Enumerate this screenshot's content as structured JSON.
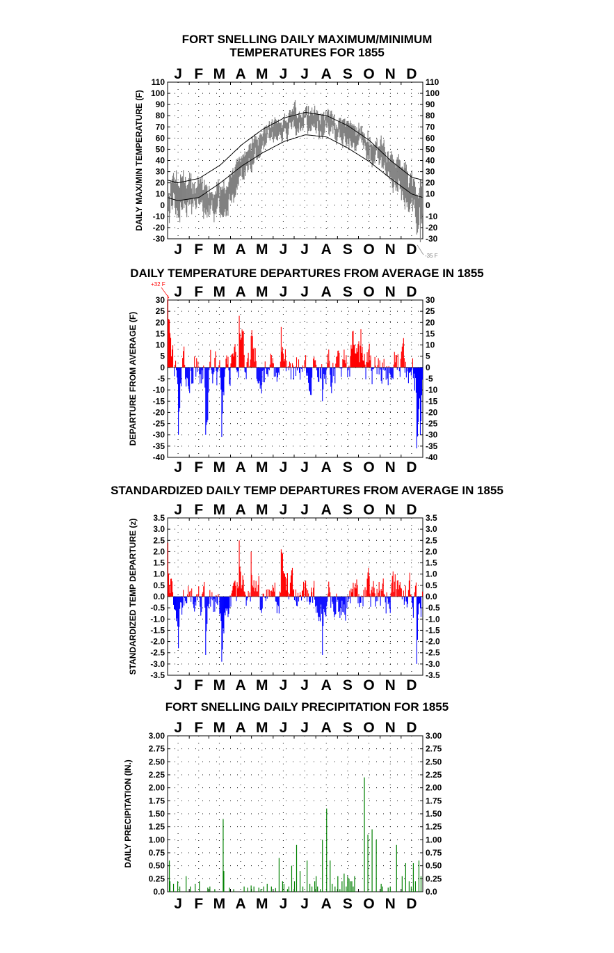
{
  "page": {
    "titles": [
      "FORT SNELLING DAILY MAXIMUM/MINIMUM",
      "TEMPERATURES FOR 1855",
      "DAILY TEMPERATURE DEPARTURES FROM AVERAGE IN 1855",
      "STANDARDIZED DAILY TEMP DEPARTURES FROM AVERAGE IN 1855",
      "FORT SNELLING DAILY PRECIPITATION FOR 1855"
    ]
  },
  "months": [
    "J",
    "F",
    "M",
    "A",
    "M",
    "J",
    "J",
    "A",
    "S",
    "O",
    "N",
    "D"
  ],
  "colors": {
    "series_daily": "#808080",
    "normals": "#000000",
    "above": "#ff0000",
    "below": "#0000ff",
    "precip": "#008000",
    "grid": "#000000",
    "note": "#ff0000"
  },
  "chart_data": [
    {
      "type": "line",
      "title": "FORT SNELLING DAILY MAXIMUM/MINIMUM TEMPERATURES FOR 1855",
      "ylabel": "DAILY MAX/MIN TEMPERATURE (F)",
      "xlabel": "",
      "x_ticks": [
        "J",
        "F",
        "M",
        "A",
        "M",
        "J",
        "J",
        "A",
        "S",
        "O",
        "N",
        "D"
      ],
      "ylim": [
        -30,
        110
      ],
      "yticks": [
        -30,
        -20,
        -10,
        0,
        10,
        20,
        30,
        40,
        50,
        60,
        70,
        80,
        90,
        100,
        110
      ],
      "grid": "dotted",
      "annotations": [
        {
          "text": "-35 F"
        }
      ],
      "series": [
        {
          "name": "",
          "kind": "daily max/min band",
          "monthly_high_approx": [
            38,
            30,
            30,
            60,
            80,
            85,
            92,
            88,
            82,
            70,
            58,
            35
          ],
          "monthly_low_approx": [
            -20,
            -15,
            -20,
            15,
            40,
            55,
            62,
            58,
            48,
            35,
            15,
            -30
          ]
        },
        {
          "name": "",
          "kind": "normal max",
          "monthly_values": [
            20,
            24,
            36,
            54,
            68,
            78,
            83,
            80,
            71,
            58,
            40,
            25
          ]
        },
        {
          "name": "",
          "kind": "normal min",
          "monthly_values": [
            4,
            7,
            20,
            35,
            47,
            57,
            63,
            61,
            51,
            39,
            24,
            10
          ]
        }
      ]
    },
    {
      "type": "bar",
      "title": "DAILY TEMPERATURE DEPARTURES FROM AVERAGE IN 1855",
      "ylabel": "DEPARTURE FROM AVERAGE (F)",
      "xlabel": "",
      "x_ticks": [
        "J",
        "F",
        "M",
        "A",
        "M",
        "J",
        "J",
        "A",
        "S",
        "O",
        "N",
        "D"
      ],
      "ylim": [
        -40,
        30
      ],
      "yticks": [
        -40,
        -35,
        -30,
        -25,
        -20,
        -15,
        -10,
        -5,
        0,
        5,
        10,
        15,
        20,
        25,
        30
      ],
      "grid": "dotted",
      "annotations": [
        {
          "text": "+32 F"
        }
      ],
      "series": [
        {
          "name": "",
          "note": "daily departure; above-average days drawn red, below-average blue",
          "sample_values": [
            {
              "day": 1,
              "value": 32
            },
            {
              "day": 16,
              "value": -30
            },
            {
              "day": 55,
              "value": -30
            },
            {
              "day": 78,
              "value": -31
            },
            {
              "day": 103,
              "value": 23
            },
            {
              "day": 108,
              "value": 16
            },
            {
              "day": 120,
              "value": 14
            },
            {
              "day": 163,
              "value": 18
            },
            {
              "day": 222,
              "value": -15
            },
            {
              "day": 265,
              "value": 16
            },
            {
              "day": 277,
              "value": 17
            },
            {
              "day": 357,
              "value": -36
            },
            {
              "day": 362,
              "value": -30
            }
          ]
        }
      ]
    },
    {
      "type": "bar",
      "title": "STANDARDIZED DAILY TEMP DEPARTURES FROM AVERAGE IN 1855",
      "ylabel": "STANDARDIZED TEMP DEPARTURE (z)",
      "xlabel": "",
      "x_ticks": [
        "J",
        "F",
        "M",
        "A",
        "M",
        "J",
        "J",
        "A",
        "S",
        "O",
        "N",
        "D"
      ],
      "ylim": [
        -3.5,
        3.5
      ],
      "yticks": [
        "-3.5",
        "-3.0",
        "-2.5",
        "-2.0",
        "-1.5",
        "-1.0",
        "-0.5",
        "0.0",
        "0.5",
        "1.0",
        "1.5",
        "2.0",
        "2.5",
        "3.0",
        "3.5"
      ],
      "grid": "dotted",
      "series": [
        {
          "name": "",
          "note": "standardized daily departure; above red, below blue",
          "sample_values": [
            {
              "day": 1,
              "value": 2.4
            },
            {
              "day": 16,
              "value": -2.3
            },
            {
              "day": 55,
              "value": -2.6
            },
            {
              "day": 78,
              "value": -2.9
            },
            {
              "day": 103,
              "value": 2.5
            },
            {
              "day": 120,
              "value": 2.0
            },
            {
              "day": 163,
              "value": 2.1
            },
            {
              "day": 222,
              "value": -2.6
            },
            {
              "day": 357,
              "value": -3.0
            }
          ]
        }
      ]
    },
    {
      "type": "bar",
      "title": "FORT SNELLING DAILY PRECIPITATION FOR 1855",
      "ylabel": "DAILY PRECIPITATION (IN.)",
      "xlabel": "",
      "x_ticks": [
        "J",
        "F",
        "M",
        "A",
        "M",
        "J",
        "J",
        "A",
        "S",
        "O",
        "N",
        "D"
      ],
      "ylim": [
        0,
        3.0
      ],
      "yticks": [
        "0.0",
        "0.25",
        "0.50",
        "0.75",
        "1.00",
        "1.25",
        "1.50",
        "1.75",
        "2.00",
        "2.25",
        "2.50",
        "2.75",
        "3.00"
      ],
      "grid": "dotted",
      "series": [
        {
          "name": "",
          "days": [
            3,
            4,
            9,
            15,
            18,
            27,
            33,
            40,
            46,
            58,
            61,
            68,
            80,
            81,
            89,
            95,
            110,
            115,
            120,
            124,
            131,
            134,
            138,
            143,
            149,
            155,
            160,
            165,
            167,
            172,
            174,
            178,
            182,
            185,
            190,
            194,
            200,
            204,
            207,
            211,
            213,
            215,
            219,
            222,
            228,
            233,
            236,
            240,
            244,
            247,
            250,
            253,
            256,
            258,
            260,
            262,
            264,
            266,
            268,
            282,
            287,
            293,
            299,
            306,
            308,
            316,
            319,
            328,
            336,
            341,
            346,
            349,
            352,
            355,
            360,
            363
          ],
          "values": [
            0.6,
            0.2,
            0.15,
            0.2,
            0.1,
            0.3,
            0.1,
            0.15,
            0.2,
            0.08,
            0.1,
            0.05,
            1.4,
            0.4,
            0.08,
            0.05,
            0.1,
            0.08,
            0.12,
            0.1,
            0.08,
            0.05,
            0.1,
            0.15,
            0.1,
            0.07,
            0.65,
            0.2,
            0.15,
            0.05,
            0.1,
            0.5,
            0.2,
            0.9,
            0.4,
            0.1,
            0.6,
            0.15,
            0.1,
            0.2,
            0.3,
            0.1,
            0.05,
            1.0,
            1.6,
            0.6,
            0.15,
            0.1,
            0.3,
            0.05,
            0.2,
            0.35,
            0.1,
            0.3,
            0.25,
            0.2,
            0.2,
            0.1,
            0.3,
            2.2,
            1.1,
            1.2,
            1.0,
            0.15,
            0.1,
            0.08,
            0.1,
            0.9,
            0.3,
            0.55,
            0.2,
            0.1,
            0.55,
            0.2,
            0.6,
            0.3
          ]
        }
      ]
    }
  ]
}
